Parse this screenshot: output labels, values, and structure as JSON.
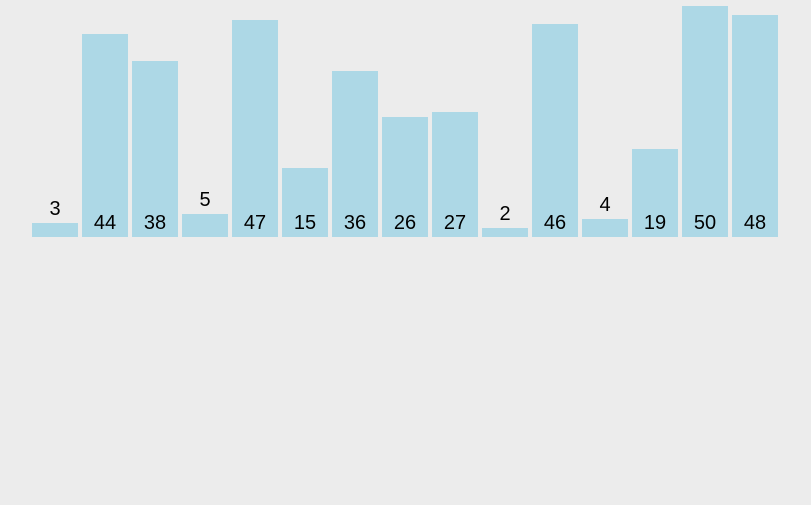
{
  "app": {
    "background_color": "#ececec"
  },
  "chart_data": {
    "type": "bar",
    "title": "",
    "xlabel": "",
    "ylabel": "",
    "values": [
      3,
      44,
      38,
      5,
      47,
      15,
      36,
      26,
      27,
      2,
      46,
      4,
      19,
      50,
      48
    ],
    "ylim": [
      0,
      50
    ],
    "grid": false,
    "axes_visible": false,
    "legend": "none",
    "bar_color": "#add8e6",
    "label_color": "#000000",
    "label_placement": "value label inside bar near base for tall bars; above bar top for short bars (3, 5, 2, 4)"
  }
}
